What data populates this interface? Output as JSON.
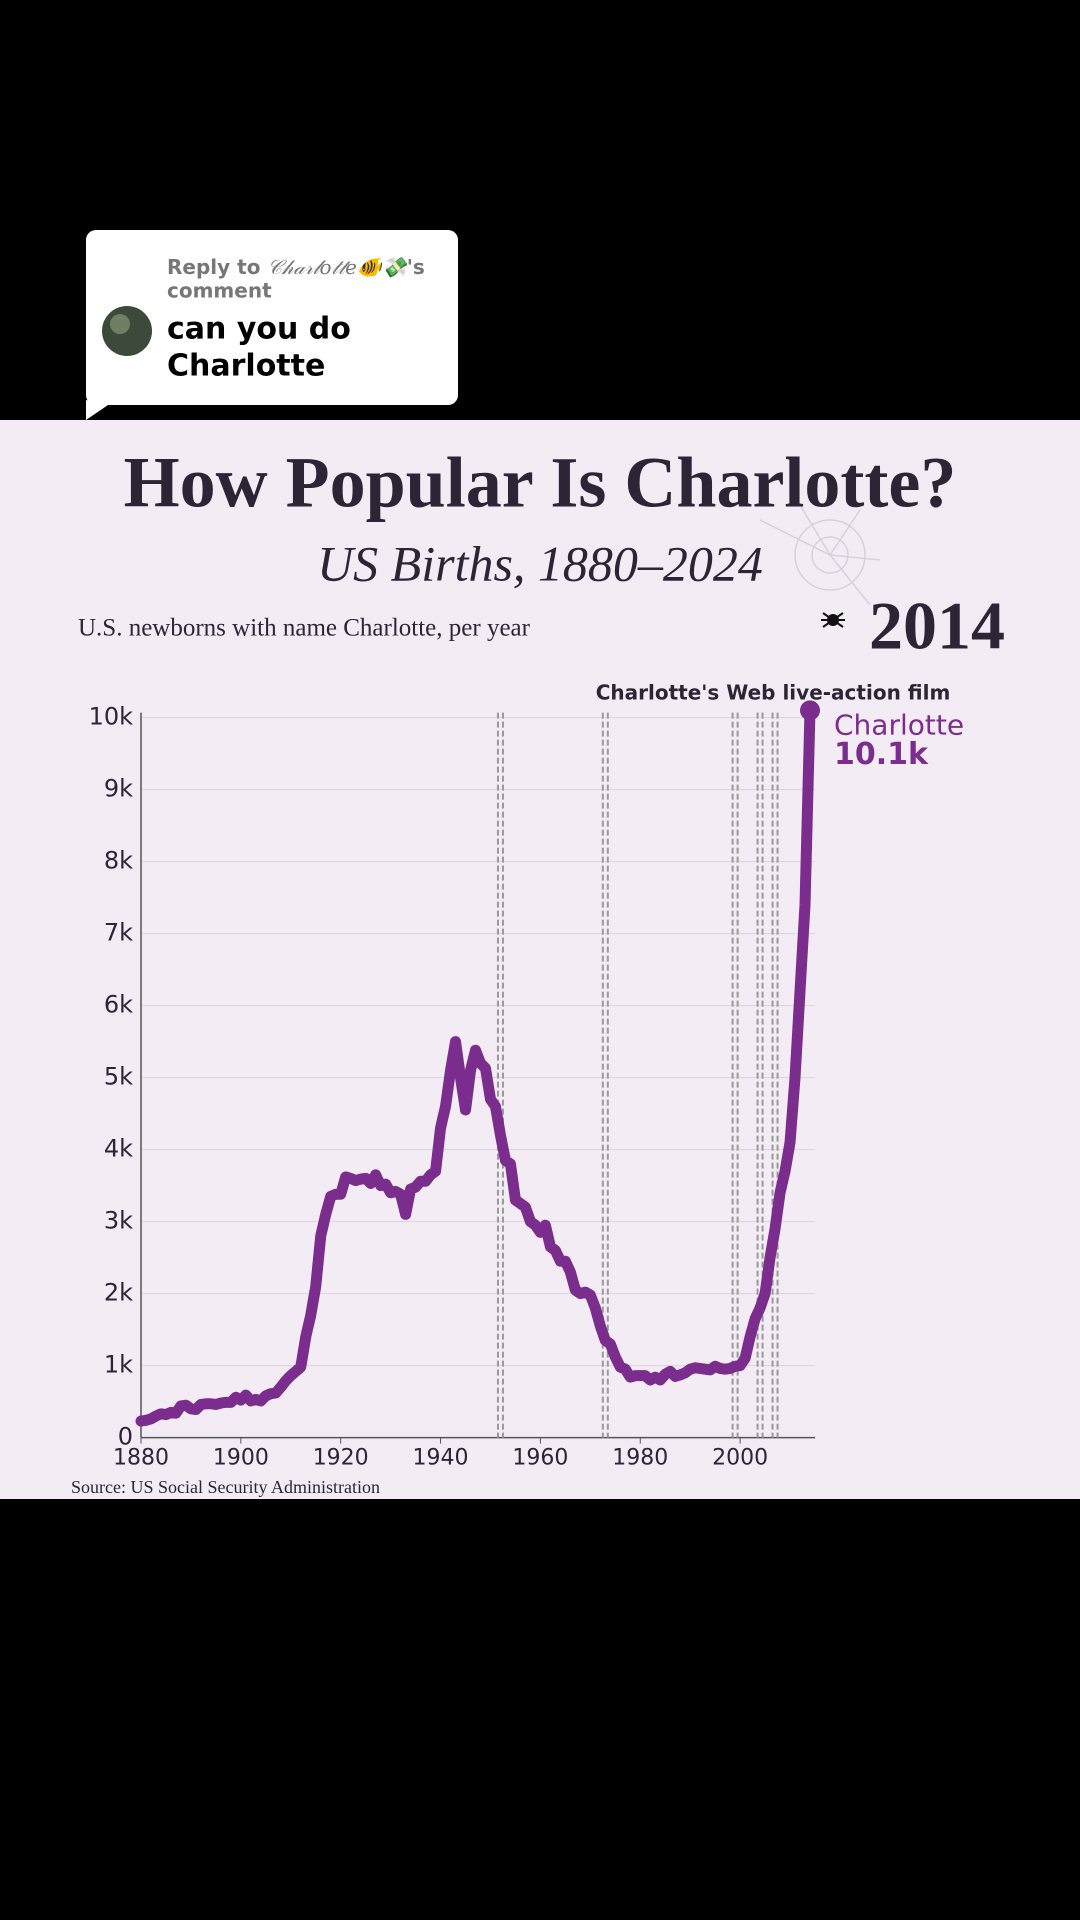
{
  "comment": {
    "reply_prefix": "Reply to",
    "username": "𝒞𝒽𝒶𝓇𝓁𝑜𝓉𝓉𝑒🐠💸",
    "suffix": "'s",
    "suffix_line2": "comment",
    "text_line1": "can you do",
    "text_line2": "Charlotte"
  },
  "chart_data": {
    "type": "line",
    "title": "How Popular Is Charlotte?",
    "subtitle": "US Births, 1880–2024",
    "y_label": "U.S. newborns with name Charlotte, per year",
    "year_label": "2014",
    "source": "Source: US Social Security Administration",
    "annotation": "Charlotte's Web live-action film",
    "event_lines": [
      1952,
      1973,
      1999,
      2004,
      2007
    ],
    "xlim": [
      1880,
      2014
    ],
    "xticks": [
      1880,
      1900,
      1920,
      1940,
      1960,
      1980,
      2000
    ],
    "ylim": [
      0,
      10000
    ],
    "yticks": [
      0,
      {
        "value": 1000,
        "label": "1k"
      },
      {
        "value": 2000,
        "label": "2k"
      },
      {
        "value": 3000,
        "label": "3k"
      },
      {
        "value": 4000,
        "label": "4k"
      },
      {
        "value": 5000,
        "label": "5k"
      },
      {
        "value": 6000,
        "label": "6k"
      },
      {
        "value": 7000,
        "label": "7k"
      },
      {
        "value": 8000,
        "label": "8k"
      },
      {
        "value": 9000,
        "label": "9k"
      },
      {
        "value": 10000,
        "label": "10k"
      }
    ],
    "grid": true,
    "x": [
      1880,
      1881,
      1882,
      1883,
      1884,
      1885,
      1886,
      1887,
      1888,
      1889,
      1890,
      1891,
      1892,
      1893,
      1894,
      1895,
      1896,
      1897,
      1898,
      1899,
      1900,
      1901,
      1902,
      1903,
      1904,
      1905,
      1906,
      1907,
      1908,
      1909,
      1910,
      1911,
      1912,
      1913,
      1914,
      1915,
      1916,
      1917,
      1918,
      1919,
      1920,
      1921,
      1922,
      1923,
      1924,
      1925,
      1926,
      1927,
      1928,
      1929,
      1930,
      1931,
      1932,
      1933,
      1934,
      1935,
      1936,
      1937,
      1938,
      1939,
      1940,
      1941,
      1942,
      1943,
      1944,
      1945,
      1946,
      1947,
      1948,
      1949,
      1950,
      1951,
      1952,
      1953,
      1954,
      1955,
      1956,
      1957,
      1958,
      1959,
      1960,
      1961,
      1962,
      1963,
      1964,
      1965,
      1966,
      1967,
      1968,
      1969,
      1970,
      1971,
      1972,
      1973,
      1974,
      1975,
      1976,
      1977,
      1978,
      1979,
      1980,
      1981,
      1982,
      1983,
      1984,
      1985,
      1986,
      1987,
      1988,
      1989,
      1990,
      1991,
      1992,
      1993,
      1994,
      1995,
      1996,
      1997,
      1998,
      1999,
      2000,
      2001,
      2002,
      2003,
      2004,
      2005,
      2006,
      2007,
      2008,
      2009,
      2010,
      2011,
      2012,
      2013,
      2014
    ],
    "series": [
      {
        "name": "Charlotte",
        "color": "#7b2d8e",
        "end_label": "10.1k",
        "values": [
          230,
          240,
          260,
          300,
          330,
          320,
          350,
          340,
          440,
          450,
          400,
          390,
          460,
          470,
          470,
          460,
          480,
          490,
          490,
          560,
          520,
          590,
          510,
          530,
          510,
          580,
          610,
          620,
          700,
          790,
          860,
          920,
          980,
          1400,
          1700,
          2100,
          2800,
          3100,
          3350,
          3380,
          3380,
          3620,
          3600,
          3570,
          3590,
          3600,
          3530,
          3650,
          3500,
          3520,
          3400,
          3420,
          3380,
          3100,
          3450,
          3480,
          3560,
          3560,
          3650,
          3700,
          4300,
          4600,
          5100,
          5500,
          5000,
          4550,
          5100,
          5380,
          5200,
          5130,
          4700,
          4600,
          4200,
          3850,
          3800,
          3300,
          3250,
          3200,
          3000,
          2950,
          2850,
          2950,
          2650,
          2600,
          2450,
          2450,
          2300,
          2050,
          2000,
          2020,
          1980,
          1800,
          1550,
          1350,
          1300,
          1120,
          980,
          950,
          840,
          860,
          860,
          860,
          800,
          840,
          800,
          880,
          920,
          850,
          870,
          900,
          950,
          970,
          960,
          950,
          940,
          990,
          960,
          950,
          960,
          990,
          1000,
          1100,
          1400,
          1650,
          1800,
          2000,
          2500,
          2900,
          3400,
          3700,
          4100,
          5000,
          6200,
          7400,
          10100
        ]
      }
    ]
  }
}
